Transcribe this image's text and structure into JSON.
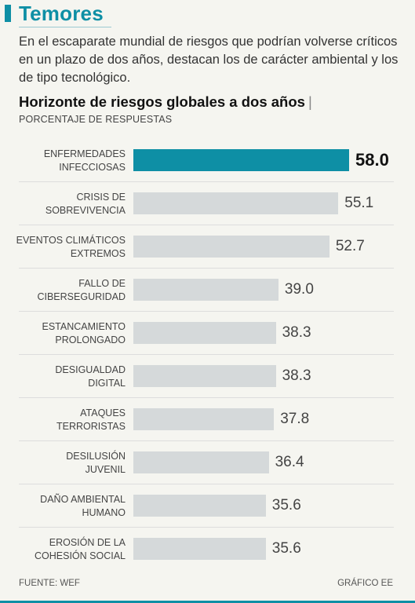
{
  "header": {
    "title": "Temores"
  },
  "intro": "En el escaparate mundial de riesgos que podrían volverse críticos en un plazo de dos años, destacan los de carácter ambiental y los de tipo tecnológico.",
  "chart_data": {
    "type": "bar",
    "orientation": "horizontal",
    "title": "Horizonte de riesgos globales a dos años",
    "subtitle": "PORCENTAJE DE RESPUESTAS",
    "categories": [
      [
        "ENFERMEDADES",
        "INFECCIOSAS"
      ],
      [
        "CRISIS DE",
        "SOBREVIVENCIA"
      ],
      [
        "EVENTOS CLIMÁTICOS",
        "EXTREMOS"
      ],
      [
        "FALLO DE",
        "CIBERSEGURIDAD"
      ],
      [
        "ESTANCAMIENTO",
        "PROLONGADO"
      ],
      [
        "DESIGUALDAD",
        "DIGITAL"
      ],
      [
        "ATAQUES",
        "TERRORISTAS"
      ],
      [
        "DESILUSIÓN",
        "JUVENIL"
      ],
      [
        "DAÑO AMBIENTAL",
        "HUMANO"
      ],
      [
        "EROSIÓN DE LA",
        "COHESIÓN SOCIAL"
      ]
    ],
    "values": [
      58.0,
      55.1,
      52.7,
      39.0,
      38.3,
      38.3,
      37.8,
      36.4,
      35.6,
      35.6
    ],
    "value_labels": [
      "58.0",
      "55.1",
      "52.7",
      "39.0",
      "38.3",
      "38.3",
      "37.8",
      "36.4",
      "35.6",
      "35.6"
    ],
    "highlight_index": 0,
    "xlim": [
      0,
      58.0
    ],
    "grid": false,
    "legend": "none"
  },
  "footer": {
    "source": "FUENTE: WEF",
    "credit": "GRÁFICO EE"
  },
  "colors": {
    "accent": "#0e8fa5",
    "bar": "#d5d9da",
    "background": "#f5f5f0"
  }
}
